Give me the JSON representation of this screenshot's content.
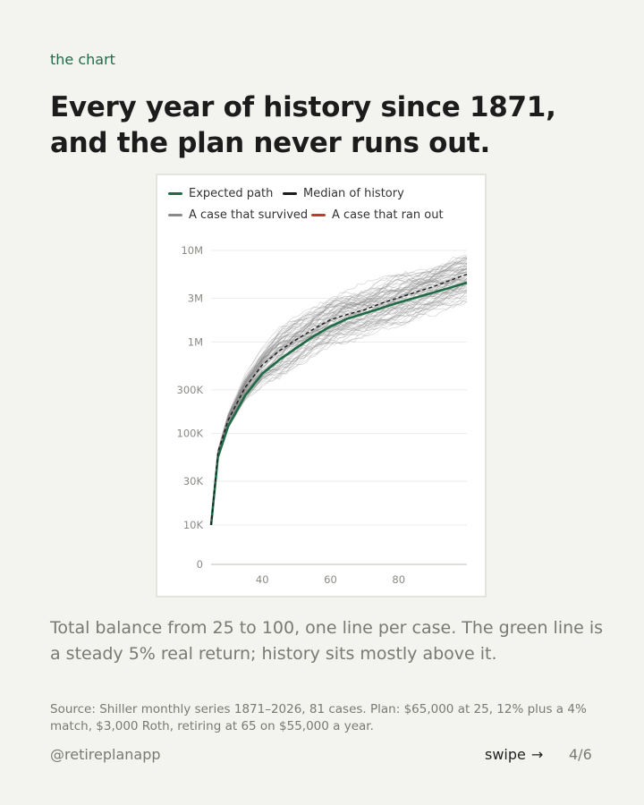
{
  "eyebrow": "the chart",
  "headline": "Every year of history since 1871, and the plan never runs out.",
  "legend": [
    {
      "label": "Expected path",
      "color": "#1f6b47"
    },
    {
      "label": "Median of history",
      "color": "#1c1c1c"
    },
    {
      "label": "A case that survived",
      "color": "#8a8a8a"
    },
    {
      "label": "A case that ran out",
      "color": "#c0392b"
    }
  ],
  "chart_data": {
    "type": "line",
    "y_scale": "log",
    "y_ticks": [
      {
        "value": 0,
        "label": "0"
      },
      {
        "value": 10000,
        "label": "10K"
      },
      {
        "value": 30000,
        "label": "30K"
      },
      {
        "value": 100000,
        "label": "100K"
      },
      {
        "value": 300000,
        "label": "300K"
      },
      {
        "value": 1000000,
        "label": "1M"
      },
      {
        "value": 3000000,
        "label": "3M"
      },
      {
        "value": 10000000,
        "label": "10M"
      }
    ],
    "x_ticks": [
      40,
      60,
      80
    ],
    "xlim": [
      25,
      100
    ],
    "ylim": [
      0,
      10000000
    ],
    "grid": true,
    "legend_position": "top",
    "cases": 81,
    "series": [
      {
        "name": "Expected path",
        "color": "#1f6b47",
        "x": [
          25,
          27,
          30,
          35,
          40,
          45,
          50,
          55,
          60,
          65,
          70,
          75,
          80,
          85,
          90,
          95,
          100
        ],
        "values": [
          10000,
          55000,
          120000,
          260000,
          450000,
          640000,
          860000,
          1150000,
          1480000,
          1800000,
          2050000,
          2350000,
          2700000,
          3050000,
          3450000,
          3900000,
          4450000
        ]
      },
      {
        "name": "Median of history",
        "color": "#1c1c1c",
        "x": [
          25,
          27,
          30,
          35,
          40,
          45,
          50,
          55,
          60,
          65,
          70,
          75,
          80,
          85,
          90,
          95,
          100
        ],
        "values": [
          10000,
          62000,
          140000,
          320000,
          560000,
          800000,
          1060000,
          1380000,
          1750000,
          2000000,
          2250000,
          2650000,
          3050000,
          3500000,
          4000000,
          4700000,
          5500000
        ]
      }
    ]
  },
  "caption": "Total balance from 25 to 100, one line per case. The green line is a steady 5% real return; history sits mostly above it.",
  "source": "Source: Shiller monthly series 1871–2026, 81 cases. Plan: $65,000 at 25, 12% plus a 4% match, $3,000 Roth, retiring at 65 on $55,000 a year.",
  "handle": "@retireplanapp",
  "swipe": "swipe",
  "swipe_arrow": "→",
  "pager": "4/6"
}
